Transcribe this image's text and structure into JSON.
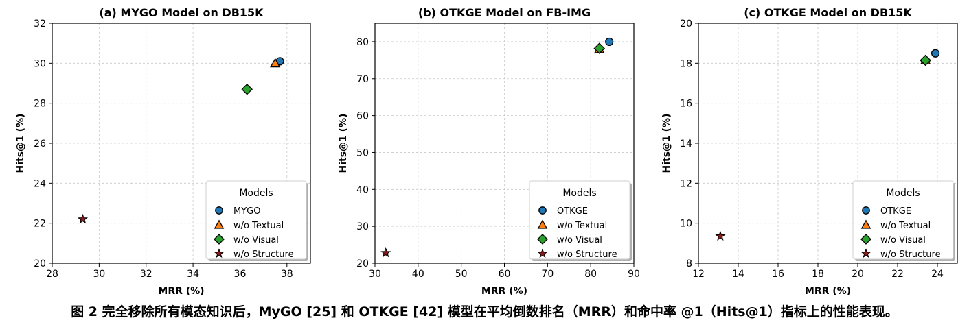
{
  "caption": "图 2 完全移除所有模态知识后，MyGO [25] 和 OTKGE [42] 模型在平均倒数排名（MRR）和命中率 @1（Hits@1）指标上的性能表现。",
  "chart_data": [
    {
      "type": "scatter",
      "title": "(a) MYGO Model on DB15K",
      "xlabel": "MRR (%)",
      "ylabel": "Hits@1 (%)",
      "xlim": [
        28,
        39
      ],
      "ylim": [
        20,
        32
      ],
      "xticks": [
        28,
        30,
        32,
        34,
        36,
        38
      ],
      "yticks": [
        20,
        22,
        24,
        26,
        28,
        30,
        32
      ],
      "grid": true,
      "legend_title": "Models",
      "legend_position": "lower-right",
      "series": [
        {
          "name": "MYGO",
          "marker": "circle",
          "color": "#1f77b4",
          "x": [
            37.7
          ],
          "y": [
            30.1
          ]
        },
        {
          "name": "w/o Textual",
          "marker": "triangle",
          "color": "#ff7f0e",
          "x": [
            37.5
          ],
          "y": [
            30.0
          ]
        },
        {
          "name": "w/o Visual",
          "marker": "diamond",
          "color": "#2ca02c",
          "x": [
            36.3
          ],
          "y": [
            28.7
          ]
        },
        {
          "name": "w/o Structure",
          "marker": "star",
          "color": "#8b1a1a",
          "x": [
            29.3
          ],
          "y": [
            22.2
          ]
        }
      ]
    },
    {
      "type": "scatter",
      "title": "(b) OTKGE Model on FB-IMG",
      "xlabel": "MRR (%)",
      "ylabel": "Hits@1 (%)",
      "xlim": [
        30,
        90
      ],
      "ylim": [
        20,
        85
      ],
      "xticks": [
        30,
        40,
        50,
        60,
        70,
        80,
        90
      ],
      "yticks": [
        20,
        30,
        40,
        50,
        60,
        70,
        80
      ],
      "grid": true,
      "legend_title": "Models",
      "legend_position": "lower-right",
      "series": [
        {
          "name": "OTKGE",
          "marker": "circle",
          "color": "#1f77b4",
          "x": [
            84.3
          ],
          "y": [
            80.0
          ]
        },
        {
          "name": "w/o Textual",
          "marker": "triangle",
          "color": "#ff7f0e",
          "x": [
            82.0
          ],
          "y": [
            78.0
          ]
        },
        {
          "name": "w/o Visual",
          "marker": "diamond",
          "color": "#2ca02c",
          "x": [
            82.0
          ],
          "y": [
            78.2
          ]
        },
        {
          "name": "w/o Structure",
          "marker": "star",
          "color": "#8b1a1a",
          "x": [
            32.5
          ],
          "y": [
            22.8
          ]
        }
      ]
    },
    {
      "type": "scatter",
      "title": "(c) OTKGE Model on DB15K",
      "xlabel": "MRR (%)",
      "ylabel": "Hits@1 (%)",
      "xlim": [
        12,
        25
      ],
      "ylim": [
        8,
        20
      ],
      "xticks": [
        12,
        14,
        16,
        18,
        20,
        22,
        24
      ],
      "yticks": [
        8,
        10,
        12,
        14,
        16,
        18,
        20
      ],
      "grid": true,
      "legend_title": "Models",
      "legend_position": "lower-right",
      "series": [
        {
          "name": "OTKGE",
          "marker": "circle",
          "color": "#1f77b4",
          "x": [
            23.9
          ],
          "y": [
            18.5
          ]
        },
        {
          "name": "w/o Textual",
          "marker": "triangle",
          "color": "#ff7f0e",
          "x": [
            23.4
          ],
          "y": [
            18.15
          ]
        },
        {
          "name": "w/o Visual",
          "marker": "diamond",
          "color": "#2ca02c",
          "x": [
            23.4
          ],
          "y": [
            18.15
          ]
        },
        {
          "name": "w/o Structure",
          "marker": "star",
          "color": "#8b1a1a",
          "x": [
            13.1
          ],
          "y": [
            9.35
          ]
        }
      ]
    }
  ]
}
